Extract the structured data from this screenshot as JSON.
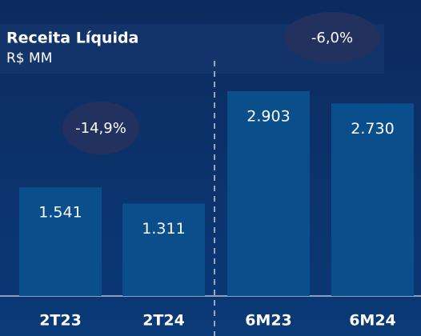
{
  "chart_data": {
    "type": "bar",
    "title": "Receita Líquida",
    "subtitle": "R$ MM",
    "categories": [
      "2T23",
      "2T24",
      "6M23",
      "6M24"
    ],
    "values": [
      1541,
      1311,
      2903,
      2730
    ],
    "value_labels": [
      "1.541",
      "1.311",
      "2.903",
      "2.730"
    ],
    "color": "#0a4e8c",
    "annotations": [
      "-14,9%",
      "-6,0%"
    ]
  }
}
